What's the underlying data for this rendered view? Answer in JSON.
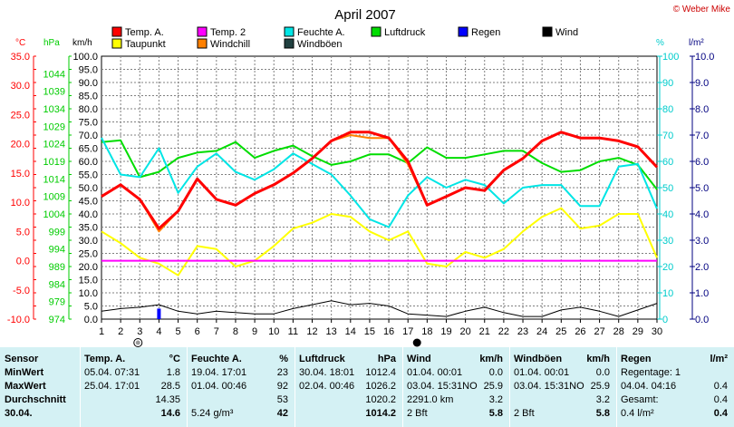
{
  "title": "April 2007",
  "credit": "© Weber Mike",
  "legend": [
    {
      "label": "Temp. A.",
      "color": "#ff0000"
    },
    {
      "label": "Temp. 2",
      "color": "#ff00ff"
    },
    {
      "label": "Feuchte A.",
      "color": "#00e5e5"
    },
    {
      "label": "Luftdruck",
      "color": "#00dd00"
    },
    {
      "label": "Regen",
      "color": "#0000ff"
    },
    {
      "label": "Wind",
      "color": "#000000"
    },
    {
      "label": "Taupunkt",
      "color": "#ffff00"
    },
    {
      "label": "Windchill",
      "color": "#ff8000"
    },
    {
      "label": "Windböen",
      "color": "#204040"
    }
  ],
  "chart_data": {
    "type": "line",
    "x": [
      1,
      2,
      3,
      4,
      5,
      6,
      7,
      8,
      9,
      10,
      11,
      12,
      13,
      14,
      15,
      16,
      17,
      18,
      19,
      20,
      21,
      22,
      23,
      24,
      25,
      26,
      27,
      28,
      29,
      30
    ],
    "xlim": [
      1,
      30
    ],
    "axes": {
      "temp": {
        "unit": "°C",
        "ylim": [
          -10,
          35
        ],
        "ticks": [
          "35.0",
          "30.0",
          "25.0",
          "20.0",
          "15.0",
          "10.0",
          "5.0",
          "0.0",
          "-5.0",
          "-10.0"
        ],
        "color": "#ff0000"
      },
      "press": {
        "unit": "hPa",
        "ylim": [
          974,
          1049
        ],
        "ticks": [
          "1044",
          "1039",
          "1034",
          "1029",
          "1024",
          "1019",
          "1014",
          "1009",
          "1004",
          "999",
          "994",
          "989",
          "984",
          "979",
          "974"
        ],
        "color": "#00cc00"
      },
      "wind": {
        "unit": "km/h",
        "ylim": [
          0,
          100
        ],
        "ticks": [
          "100.0",
          "95.0",
          "90.0",
          "85.0",
          "80.0",
          "75.0",
          "70.0",
          "65.0",
          "60.0",
          "55.0",
          "50.0",
          "45.0",
          "40.0",
          "35.0",
          "30.0",
          "25.0",
          "20.0",
          "15.0",
          "10.0",
          "5.0",
          "0.0"
        ],
        "color": "#000000"
      },
      "hum": {
        "unit": "%",
        "ylim": [
          0,
          100
        ],
        "ticks": [
          "100",
          "90",
          "80",
          "70",
          "60",
          "50",
          "40",
          "30",
          "20",
          "10",
          "0"
        ],
        "color": "#00cccc"
      },
      "rain": {
        "unit": "l/m²",
        "ylim": [
          0,
          10
        ],
        "ticks": [
          "10.0",
          "9.0",
          "8.0",
          "7.0",
          "6.0",
          "5.0",
          "4.0",
          "3.0",
          "2.0",
          "1.0",
          "0.0"
        ],
        "color": "#000080"
      }
    },
    "series": [
      {
        "name": "Luftdruck",
        "axis": "press",
        "color": "#00dd00",
        "values": [
          1024.5,
          1025,
          1014.5,
          1016,
          1020,
          1021.5,
          1022,
          1024.5,
          1020,
          1022,
          1023.5,
          1020.5,
          1018,
          1019,
          1021,
          1021,
          1018.5,
          1023,
          1020,
          1020,
          1021,
          1022,
          1022,
          1018.5,
          1016,
          1016.5,
          1019,
          1020,
          1018,
          1011
        ]
      },
      {
        "name": "Feuchte A.",
        "axis": "hum",
        "color": "#00e5e5",
        "values": [
          69,
          55,
          54,
          65,
          48,
          58,
          63,
          56,
          53,
          57,
          63,
          59,
          55,
          47,
          38,
          35,
          47,
          54,
          50,
          53,
          51,
          44,
          50,
          51,
          51,
          43,
          43,
          58,
          59,
          42
        ]
      },
      {
        "name": "Taupunkt",
        "axis": "temp",
        "color": "#ffff00",
        "values": [
          5.0,
          3.0,
          0.5,
          -0.5,
          -2.5,
          2.5,
          2.0,
          -1.0,
          0.0,
          2.5,
          5.5,
          6.5,
          8.0,
          7.5,
          5.0,
          3.5,
          5.0,
          -0.5,
          -1.0,
          1.5,
          0.5,
          2.0,
          5.0,
          7.5,
          9.0,
          5.5,
          6.0,
          8.0,
          8.0,
          0.5
        ]
      },
      {
        "name": "Windchill",
        "axis": "temp",
        "color": "#ff8000",
        "values": [
          11.0,
          13.0,
          10.5,
          5.0,
          8.5,
          14.0,
          10.5,
          9.5,
          11.5,
          13.0,
          15.0,
          17.5,
          20.5,
          21.5,
          21.0,
          21.0,
          16.5,
          9.5,
          11.0,
          12.5,
          12.0,
          15.5,
          17.5,
          20.5,
          22.0,
          21.0,
          21.0,
          20.5,
          19.5,
          16.0
        ]
      },
      {
        "name": "Temp. A.",
        "axis": "temp",
        "color": "#ff0000",
        "values": [
          11.0,
          13.0,
          10.5,
          5.5,
          8.5,
          14.0,
          10.5,
          9.5,
          11.5,
          13.0,
          15.0,
          17.5,
          20.5,
          22.0,
          22.0,
          21.0,
          17.0,
          9.5,
          11.0,
          12.5,
          12.0,
          15.5,
          17.5,
          20.5,
          22.0,
          21.0,
          21.0,
          20.5,
          19.5,
          16.0
        ]
      },
      {
        "name": "Temp. 2",
        "axis": "temp",
        "color": "#ff00ff",
        "values": [
          0,
          0,
          0,
          0,
          0,
          0,
          0,
          0,
          0,
          0,
          0,
          0,
          0,
          0,
          0,
          0,
          0,
          0,
          0,
          0,
          0,
          0,
          0,
          0,
          0,
          0,
          0,
          0,
          0,
          0
        ]
      },
      {
        "name": "Wind",
        "axis": "wind",
        "color": "#000000",
        "values": [
          3.0,
          4.0,
          4.5,
          5.5,
          3.0,
          2.0,
          3.0,
          2.5,
          2.0,
          2.0,
          4.0,
          5.5,
          7.0,
          5.5,
          6.0,
          5.0,
          2.0,
          1.5,
          1.0,
          3.0,
          4.5,
          2.5,
          1.0,
          1.0,
          3.5,
          4.5,
          3.0,
          1.0,
          3.5,
          6.0
        ]
      },
      {
        "name": "Regen",
        "axis": "rain",
        "color": "#0000ff",
        "type": "bar",
        "values": [
          0,
          0,
          0,
          0.4,
          0,
          0,
          0,
          0,
          0,
          0,
          0,
          0,
          0,
          0,
          0,
          0,
          0,
          0,
          0,
          0,
          0,
          0,
          0,
          0,
          0,
          0,
          0,
          0,
          0,
          0
        ]
      }
    ],
    "grid": true,
    "moon_markers": {
      "full_day": 3,
      "new_day": 17
    }
  },
  "summary": {
    "rows": [
      "Sensor",
      "MinWert",
      "MaxWert",
      "Durchschnitt",
      "30.04."
    ],
    "columns": [
      {
        "header": "Temp. A.",
        "unit": "°C",
        "cells": [
          [
            "05.04.  07:31",
            "1.8"
          ],
          [
            "25.04.  17:01",
            "28.5"
          ],
          [
            "",
            "14.35"
          ],
          [
            "",
            "14.6"
          ]
        ]
      },
      {
        "header": "Feuchte A.",
        "unit": "%",
        "cells": [
          [
            "19.04.  17:01",
            "23"
          ],
          [
            "01.04.  00:46",
            "92"
          ],
          [
            "",
            "53"
          ],
          [
            "5.24 g/m³",
            "42"
          ]
        ]
      },
      {
        "header": "Luftdruck",
        "unit": "hPa",
        "cells": [
          [
            "30.04.  18:01",
            "1012.4"
          ],
          [
            "02.04.  00:46",
            "1026.2"
          ],
          [
            "",
            "1020.2"
          ],
          [
            "",
            "1014.2"
          ]
        ]
      },
      {
        "header": "Wind",
        "unit": "km/h",
        "cells": [
          [
            "01.04.  00:01",
            "0.0"
          ],
          [
            "03.04.  15:31NO",
            "25.9"
          ],
          [
            "2291.0 km",
            "3.2"
          ],
          [
            "2 Bft",
            "5.8"
          ]
        ]
      },
      {
        "header": "Windböen",
        "unit": "km/h",
        "cells": [
          [
            "01.04.  00:01",
            "0.0"
          ],
          [
            "03.04.  15:31NO",
            "25.9"
          ],
          [
            "",
            "3.2"
          ],
          [
            "2 Bft",
            "5.8"
          ]
        ]
      },
      {
        "header": "Regen",
        "unit": "l/m²",
        "cells": [
          [
            "Regentage: 1",
            ""
          ],
          [
            "04.04.  04:16",
            "0.4"
          ],
          [
            "Gesamt:",
            "0.4"
          ],
          [
            "0.4 l/m²",
            "0.4"
          ]
        ]
      }
    ]
  }
}
